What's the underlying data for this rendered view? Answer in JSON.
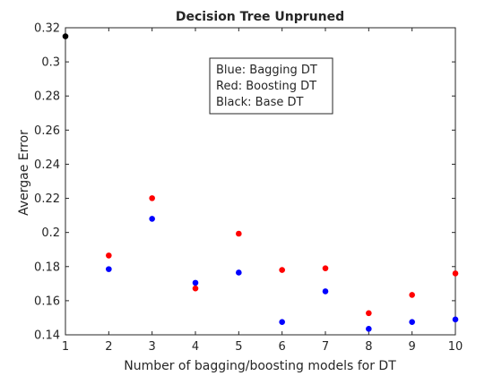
{
  "colors": {
    "background": "#ffffff",
    "axis": "#262626",
    "bagging": "#0000ff",
    "boosting": "#ff0000",
    "base": "#000000"
  },
  "chart_data": {
    "type": "scatter",
    "title": "Decision Tree Unpruned",
    "xlabel": "Number of bagging/boosting models for DT",
    "ylabel": "Avergae Error",
    "xlim": [
      1,
      10
    ],
    "ylim": [
      0.14,
      0.32
    ],
    "xticks": [
      1,
      2,
      3,
      4,
      5,
      6,
      7,
      8,
      9,
      10
    ],
    "xtick_labels": [
      "1",
      "2",
      "3",
      "4",
      "5",
      "6",
      "7",
      "8",
      "9",
      "10"
    ],
    "yticks": [
      0.14,
      0.16,
      0.18,
      0.2,
      0.22,
      0.24,
      0.26,
      0.28,
      0.3,
      0.32
    ],
    "ytick_labels": [
      "0.14",
      "0.16",
      "0.18",
      "0.2",
      "0.22",
      "0.24",
      "0.26",
      "0.28",
      "0.3",
      "0.32"
    ],
    "grid": false,
    "legend_placement": "top-center",
    "annotation_lines": [
      "Blue: Bagging DT",
      "Red: Boosting DT",
      "Black: Base DT"
    ],
    "series": [
      {
        "color": "#0000ff",
        "x": [
          2,
          3,
          4,
          5,
          6,
          7,
          8,
          9,
          10
        ],
        "y": [
          0.1785,
          0.208,
          0.1705,
          0.1765,
          0.1475,
          0.1655,
          0.1435,
          0.1475,
          0.149
        ]
      },
      {
        "color": "#ff0000",
        "x": [
          2,
          3,
          4,
          5,
          6,
          7,
          8,
          9,
          10
        ],
        "y": [
          0.1865,
          0.2201,
          0.1672,
          0.1993,
          0.178,
          0.179,
          0.1527,
          0.1634,
          0.176
        ]
      },
      {
        "color": "#000000",
        "x": [
          1
        ],
        "y": [
          0.315
        ]
      }
    ]
  }
}
